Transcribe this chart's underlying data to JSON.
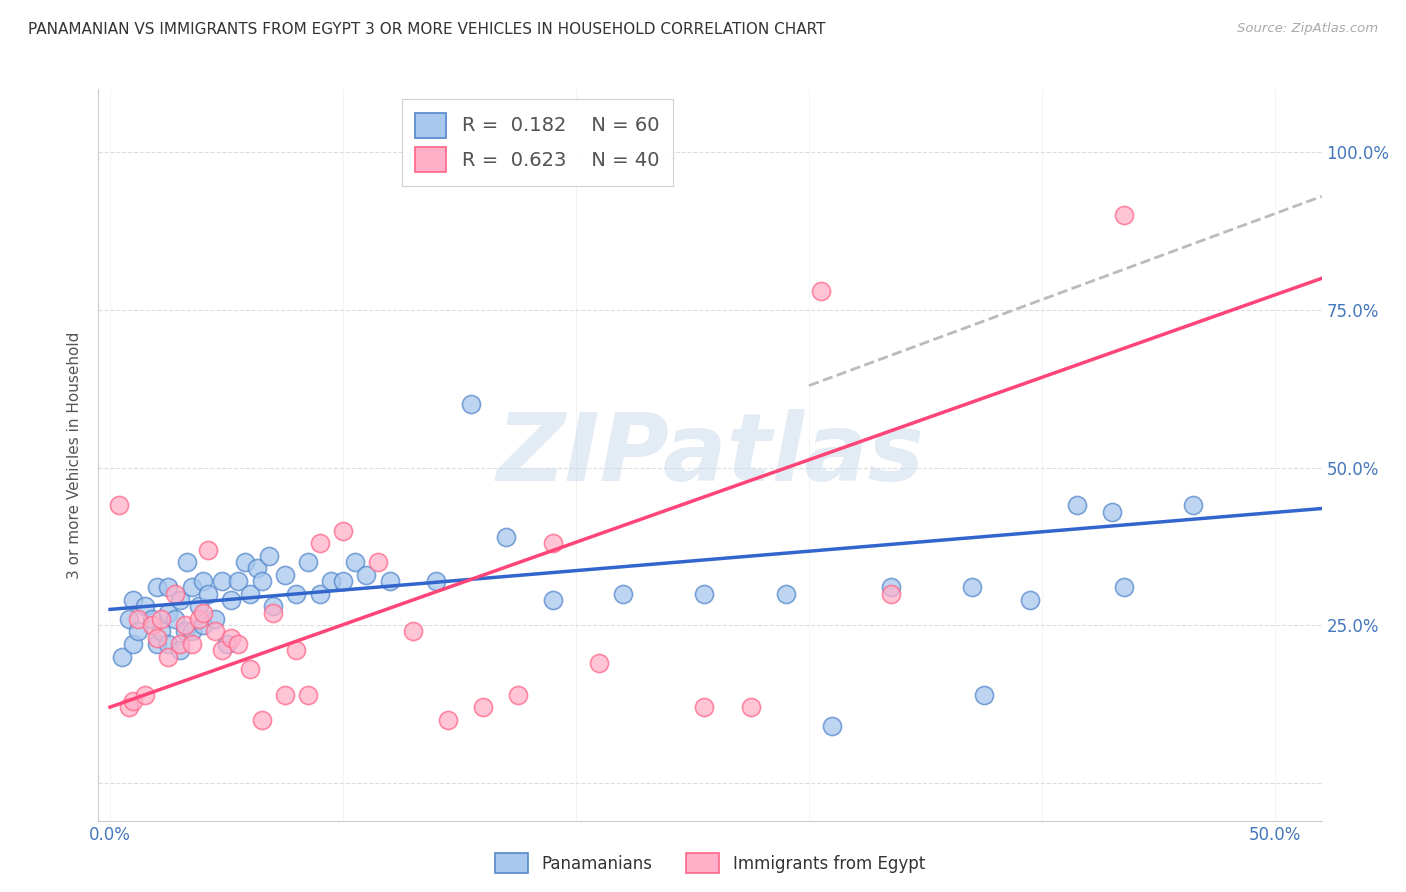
{
  "title": "PANAMANIAN VS IMMIGRANTS FROM EGYPT 3 OR MORE VEHICLES IN HOUSEHOLD CORRELATION CHART",
  "source": "Source: ZipAtlas.com",
  "ylabel": "3 or more Vehicles in Household",
  "xlim": [
    -0.005,
    0.52
  ],
  "ylim": [
    -0.06,
    1.1
  ],
  "x_ticks": [
    0.0,
    0.1,
    0.2,
    0.3,
    0.4,
    0.5
  ],
  "x_tick_labels": [
    "0.0%",
    "",
    "",
    "",
    "",
    "50.0%"
  ],
  "y_ticks": [
    0.0,
    0.25,
    0.5,
    0.75,
    1.0
  ],
  "y_tick_labels_right": [
    "",
    "25.0%",
    "50.0%",
    "75.0%",
    "100.0%"
  ],
  "blue_R": "0.182",
  "blue_N": "60",
  "pink_R": "0.623",
  "pink_N": "40",
  "blue_face": "#A8C8EE",
  "blue_edge": "#5588CC",
  "pink_face": "#FFB0C8",
  "pink_edge": "#FF6688",
  "blue_line": "#3366CC",
  "pink_line": "#FF4477",
  "gray_line": "#BBBBBB",
  "watermark": "ZIPatlas",
  "label_blue": "Panamanians",
  "label_pink": "Immigrants from Egypt",
  "blue_x": [
    0.005,
    0.008,
    0.01,
    0.01,
    0.012,
    0.015,
    0.018,
    0.02,
    0.02,
    0.022,
    0.025,
    0.025,
    0.025,
    0.028,
    0.03,
    0.03,
    0.032,
    0.033,
    0.035,
    0.035,
    0.038,
    0.04,
    0.04,
    0.042,
    0.045,
    0.048,
    0.05,
    0.052,
    0.055,
    0.058,
    0.06,
    0.063,
    0.065,
    0.068,
    0.07,
    0.075,
    0.08,
    0.085,
    0.09,
    0.095,
    0.1,
    0.105,
    0.11,
    0.12,
    0.14,
    0.155,
    0.17,
    0.19,
    0.22,
    0.255,
    0.29,
    0.31,
    0.335,
    0.37,
    0.375,
    0.395,
    0.415,
    0.43,
    0.435,
    0.465
  ],
  "blue_y": [
    0.2,
    0.26,
    0.22,
    0.29,
    0.24,
    0.28,
    0.26,
    0.22,
    0.31,
    0.24,
    0.22,
    0.27,
    0.31,
    0.26,
    0.21,
    0.29,
    0.24,
    0.35,
    0.24,
    0.31,
    0.28,
    0.25,
    0.32,
    0.3,
    0.26,
    0.32,
    0.22,
    0.29,
    0.32,
    0.35,
    0.3,
    0.34,
    0.32,
    0.36,
    0.28,
    0.33,
    0.3,
    0.35,
    0.3,
    0.32,
    0.32,
    0.35,
    0.33,
    0.32,
    0.32,
    0.6,
    0.39,
    0.29,
    0.3,
    0.3,
    0.3,
    0.09,
    0.31,
    0.31,
    0.14,
    0.29,
    0.44,
    0.43,
    0.31,
    0.44
  ],
  "pink_x": [
    0.004,
    0.008,
    0.01,
    0.012,
    0.015,
    0.018,
    0.02,
    0.022,
    0.025,
    0.028,
    0.03,
    0.032,
    0.035,
    0.038,
    0.04,
    0.042,
    0.045,
    0.048,
    0.052,
    0.055,
    0.06,
    0.065,
    0.07,
    0.075,
    0.08,
    0.085,
    0.09,
    0.1,
    0.115,
    0.13,
    0.145,
    0.16,
    0.175,
    0.19,
    0.21,
    0.255,
    0.275,
    0.305,
    0.335,
    0.435
  ],
  "pink_y": [
    0.44,
    0.12,
    0.13,
    0.26,
    0.14,
    0.25,
    0.23,
    0.26,
    0.2,
    0.3,
    0.22,
    0.25,
    0.22,
    0.26,
    0.27,
    0.37,
    0.24,
    0.21,
    0.23,
    0.22,
    0.18,
    0.1,
    0.27,
    0.14,
    0.21,
    0.14,
    0.38,
    0.4,
    0.35,
    0.24,
    0.1,
    0.12,
    0.14,
    0.38,
    0.19,
    0.12,
    0.12,
    0.78,
    0.3,
    0.9
  ],
  "blue_trend_x": [
    0.0,
    0.52
  ],
  "blue_trend_y": [
    0.275,
    0.435
  ],
  "pink_trend_x": [
    0.0,
    0.52
  ],
  "pink_trend_y": [
    0.12,
    0.8
  ],
  "gray_trend_x": [
    0.3,
    0.52
  ],
  "gray_trend_y": [
    0.63,
    0.93
  ]
}
